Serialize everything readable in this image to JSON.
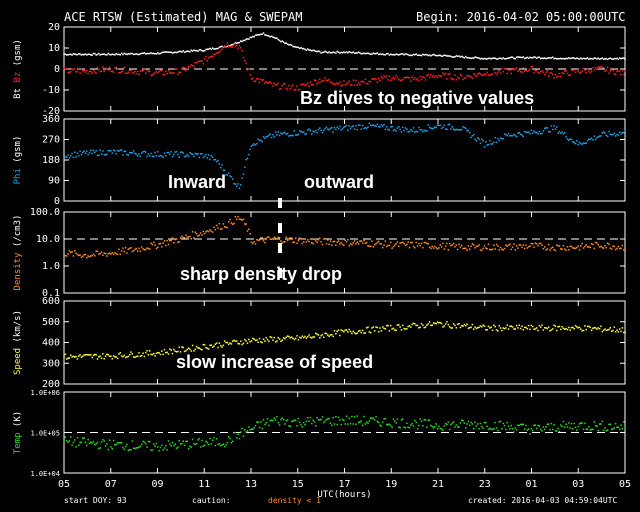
{
  "header": {
    "title": "ACE RTSW (Estimated) MAG & SWEPAM",
    "begin": "Begin: 2016-04-02 05:00:00UTC"
  },
  "annotations": {
    "bz": "Bz dives to negative values",
    "inward": "Inward",
    "outward": "outward",
    "density": "sharp density drop",
    "speed": "slow increase of speed"
  },
  "footer": {
    "start_doy": "start DOY:  93",
    "caution": "caution:",
    "density_warn": "density < 1",
    "created": "created: 2016-04-03 04:59:04UTC"
  },
  "colors": {
    "bt": "#ffffff",
    "bz": "#ff2020",
    "phi": "#1fa3e6",
    "density": "#ff8c1a",
    "speed": "#ffff33",
    "temp": "#22dd22"
  },
  "chart_data": {
    "type": "scatter",
    "xlabel": "UTC(hours)",
    "x_ticks": [
      "05",
      "07",
      "09",
      "11",
      "13",
      "15",
      "17",
      "19",
      "21",
      "23",
      "01",
      "03",
      "05"
    ],
    "panels": [
      {
        "name": "mag",
        "ylabel_parts": [
          "Bt",
          "Bz",
          "(gsm)"
        ],
        "ylim": [
          -20,
          20
        ],
        "y_ticks": [
          "20",
          "10",
          "0",
          "-10",
          "-20"
        ],
        "series": [
          {
            "name": "Bt",
            "x": [
              0,
              2,
              4,
              6,
              7,
              8,
              8.5,
              9,
              9.5,
              10,
              11,
              12,
              14,
              16,
              18,
              20,
              22,
              24
            ],
            "values": [
              7,
              7,
              7.5,
              9,
              11,
              15,
              17,
              15,
              12,
              10,
              8,
              8,
              7,
              6.5,
              5,
              5.5,
              5,
              5
            ]
          },
          {
            "name": "Bz",
            "x": [
              0,
              1,
              2,
              3,
              4,
              5,
              6,
              6.5,
              7,
              7.5,
              8,
              9,
              10,
              11,
              12,
              13,
              14,
              15,
              16,
              17,
              18,
              19,
              20,
              21,
              22,
              23,
              24
            ],
            "values": [
              -1,
              -1,
              0,
              -1,
              -2,
              -1,
              4,
              8,
              12,
              11,
              -4,
              -8,
              -9,
              -5,
              -7,
              -6,
              -4,
              -5,
              -3,
              -4,
              -2,
              -1,
              0,
              -3,
              -1,
              0,
              -2
            ]
          }
        ]
      },
      {
        "name": "phi",
        "ylabel_parts": [
          "Phi",
          "(gsm)"
        ],
        "ylim": [
          0,
          360
        ],
        "y_ticks": [
          "360",
          "270",
          "180",
          "90",
          "0"
        ],
        "series": [
          {
            "name": "Phi",
            "x": [
              0,
              1,
              2,
              3,
              4,
              5,
              6,
              6.5,
              7,
              7.5,
              8,
              9,
              10,
              11,
              12,
              13,
              14,
              15,
              16,
              17,
              18,
              19,
              20,
              21,
              22,
              23,
              24
            ],
            "values": [
              200,
              210,
              215,
              210,
              205,
              205,
              200,
              180,
              120,
              60,
              250,
              290,
              300,
              310,
              320,
              330,
              320,
              310,
              330,
              320,
              250,
              290,
              300,
              320,
              250,
              290,
              300
            ]
          }
        ]
      },
      {
        "name": "density",
        "ylabel_parts": [
          "Density",
          "(/cm3)"
        ],
        "ylim": [
          0.1,
          100
        ],
        "log": true,
        "y_ticks": [
          "100.0",
          "10.0",
          "1.0",
          "0.1"
        ],
        "series": [
          {
            "name": "Density",
            "x": [
              0,
              1,
              2,
              3,
              4,
              5,
              6,
              7,
              7.5,
              8,
              9,
              10,
              11,
              12,
              13,
              14,
              15,
              16,
              17,
              18,
              19,
              20,
              21,
              22,
              23,
              24
            ],
            "values": [
              3,
              2.5,
              3,
              4,
              6,
              10,
              18,
              35,
              60,
              8,
              10,
              9,
              8,
              7.5,
              7,
              6,
              6,
              5.5,
              5,
              5,
              5,
              5.5,
              5,
              5,
              6,
              5
            ]
          }
        ]
      },
      {
        "name": "speed",
        "ylabel_parts": [
          "Speed",
          "(km/s)"
        ],
        "ylim": [
          200,
          600
        ],
        "y_ticks": [
          "600",
          "500",
          "400",
          "300",
          "200"
        ],
        "series": [
          {
            "name": "Speed",
            "x": [
              0,
              2,
              4,
              6,
              8,
              10,
              12,
              14,
              16,
              18,
              20,
              22,
              24
            ],
            "values": [
              330,
              335,
              350,
              380,
              410,
              420,
              450,
              470,
              490,
              470,
              470,
              470,
              460
            ]
          }
        ]
      },
      {
        "name": "temp",
        "ylabel_parts": [
          "Temp",
          "(K)"
        ],
        "ylim": [
          10000,
          1000000
        ],
        "log": true,
        "y_ticks": [
          "1.0E+06",
          "1.0E+05",
          "1.0E+04"
        ],
        "series": [
          {
            "name": "Temp",
            "x": [
              0,
              2,
              4,
              6,
              7,
              8,
              9,
              10,
              12,
              14,
              16,
              18,
              20,
              22,
              24
            ],
            "values": [
              60000,
              50000,
              45000,
              55000,
              60000,
              120000,
              200000,
              180000,
              200000,
              180000,
              150000,
              160000,
              120000,
              150000,
              140000
            ]
          }
        ]
      }
    ]
  }
}
